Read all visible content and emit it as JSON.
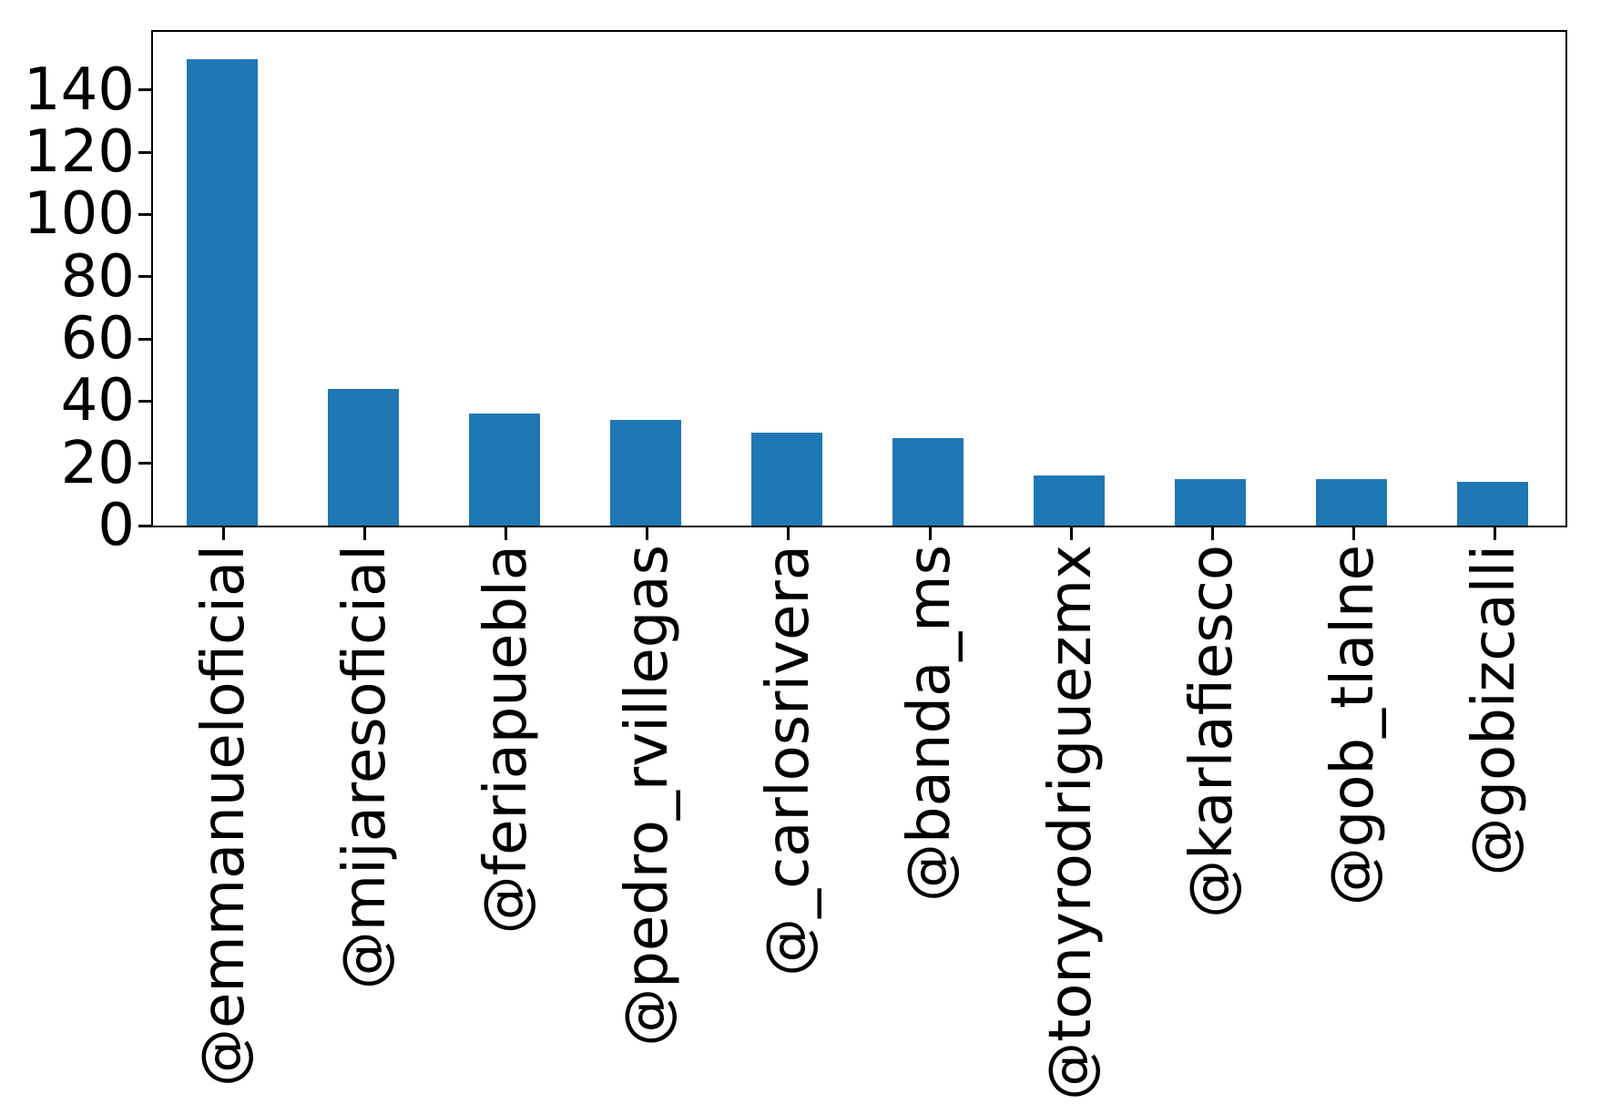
{
  "chart_data": {
    "type": "bar",
    "categories": [
      "@emmanueloficial",
      "@mijaresoficial",
      "@feriapuebla",
      "@pedro_rvillegas",
      "@_carlosrivera",
      "@banda_ms",
      "@tonyrodriguezmx",
      "@karlafiesco",
      "@gob_tlalne",
      "@gobizcalli"
    ],
    "values": [
      150,
      44,
      36,
      34,
      30,
      28,
      16,
      15,
      15,
      14
    ],
    "title": "",
    "xlabel": "",
    "ylabel": "",
    "yticks": [
      0,
      20,
      40,
      60,
      80,
      100,
      120,
      140
    ],
    "ylim": [
      0,
      158.7
    ],
    "x_tick_rotation": 90,
    "grid": false,
    "legend": false,
    "bar_color": "#1f77b4",
    "axis_color": "#000000",
    "background_color": "#ffffff"
  }
}
